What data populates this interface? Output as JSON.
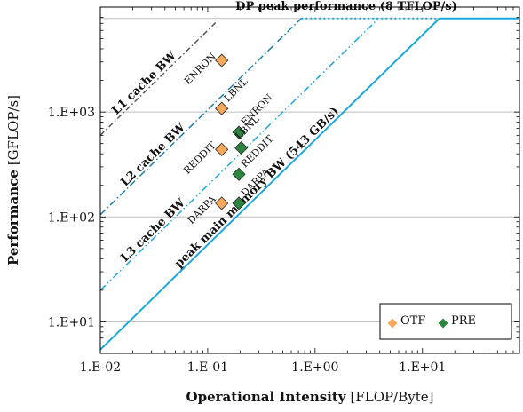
{
  "chart_data": {
    "type": "scatter",
    "scale": {
      "x": "log",
      "y": "log"
    },
    "xlim": [
      0.01,
      80
    ],
    "ylim": [
      5,
      10000
    ],
    "grid": true,
    "xlabel": {
      "bold": "Operational Intensity",
      "unit": "[FLOP/Byte]"
    },
    "ylabel": {
      "bold": "Performance",
      "unit": "[GFLOP/s]"
    },
    "x_ticks": [
      {
        "value": 0.01,
        "label": "1.E-02"
      },
      {
        "value": 0.1,
        "label": "1.E-01"
      },
      {
        "value": 1,
        "label": "1.E+00"
      },
      {
        "value": 10,
        "label": "1.E+01"
      }
    ],
    "y_ticks": [
      {
        "value": 10,
        "label": "1.E+01"
      },
      {
        "value": 100,
        "label": "1.E+02"
      },
      {
        "value": 1000,
        "label": "1.E+03"
      }
    ],
    "rooflines": [
      {
        "id": "peak",
        "label": "DP peak performance (8 TFLOP/s)",
        "value": 7800
      },
      {
        "id": "mem",
        "label": "peak main memory BW (543 GB/s)",
        "bandwidth": 543,
        "color": "#1aa7de"
      },
      {
        "id": "l3",
        "label": "L3 cache BW",
        "bandwidth": 2000,
        "color": "#1aa7de"
      },
      {
        "id": "l2",
        "label": "L2 cache BW",
        "bandwidth": 10500,
        "color": "#1a7fae"
      },
      {
        "id": "l1",
        "label": "L1 cache BW",
        "bandwidth": 60000,
        "color": "#555555"
      }
    ],
    "series": [
      {
        "name": "OTF",
        "color": "#f6a85c",
        "points": [
          {
            "label": "ENRON",
            "x": 0.135,
            "y": 3100
          },
          {
            "label": "LBNL",
            "x": 0.135,
            "y": 1080
          },
          {
            "label": "REDDIT",
            "x": 0.135,
            "y": 440
          },
          {
            "label": "DARPA",
            "x": 0.135,
            "y": 135
          }
        ]
      },
      {
        "name": "PRE",
        "color": "#2e8540",
        "points": [
          {
            "label": "ENRON",
            "x": 0.195,
            "y": 640
          },
          {
            "label": "LBNL",
            "x": 0.205,
            "y": 455
          },
          {
            "label": "REDDIT",
            "x": 0.195,
            "y": 255
          },
          {
            "label": "DARPA",
            "x": 0.195,
            "y": 135
          }
        ]
      }
    ],
    "legend": {
      "placement": "bottom-right",
      "entries": [
        "OTF",
        "PRE"
      ]
    }
  }
}
